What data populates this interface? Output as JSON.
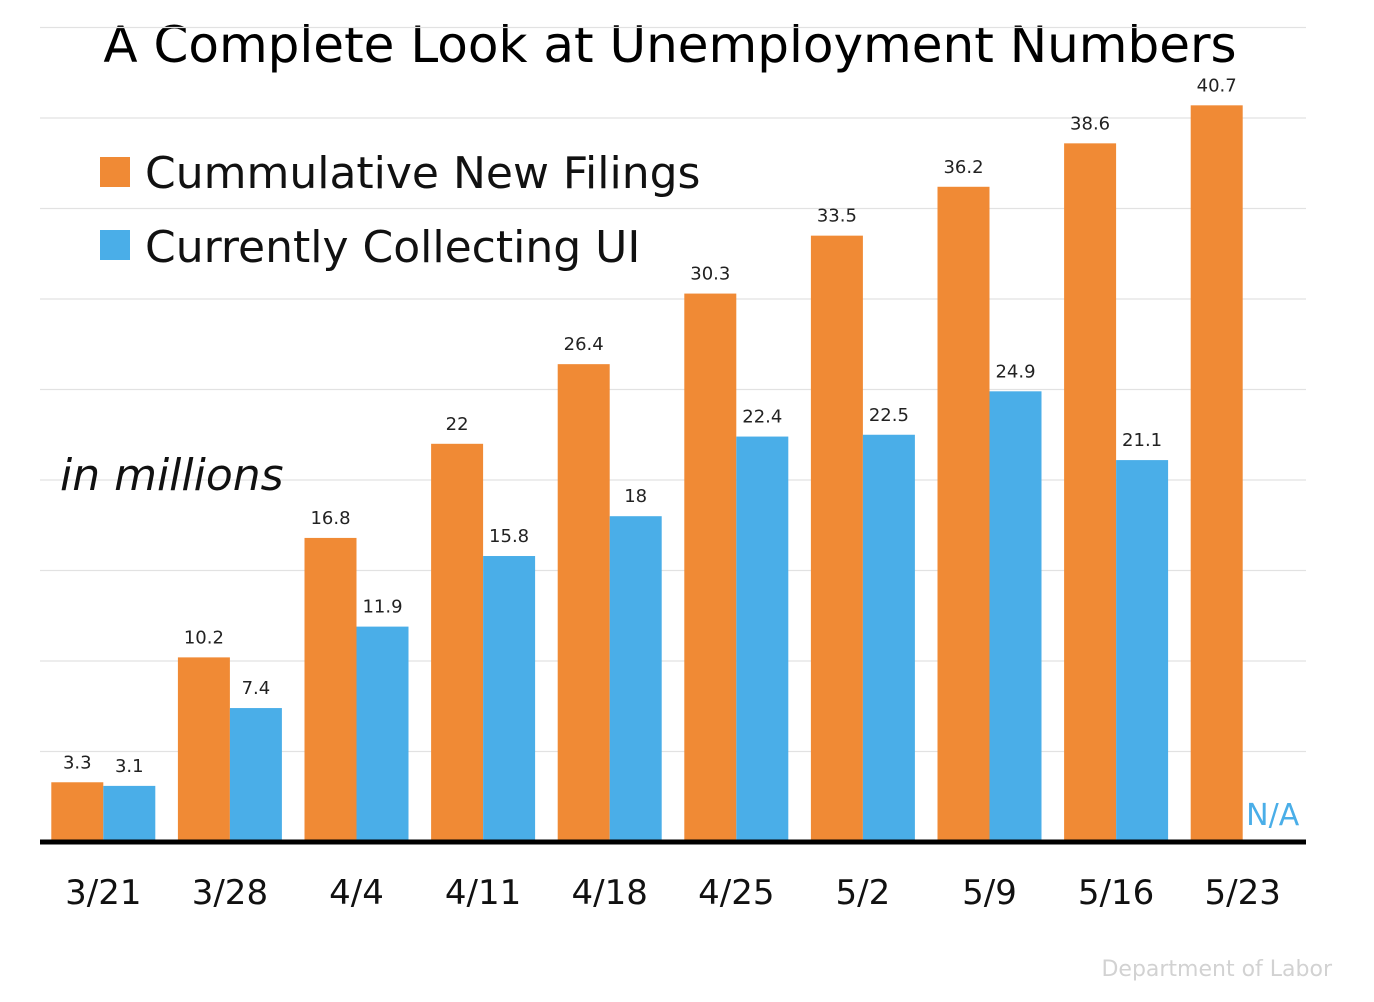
{
  "chart_data": {
    "type": "bar",
    "title": "A Complete Look at Unemployment Numbers",
    "unit_label": "in millions",
    "categories": [
      "3/21",
      "3/28",
      "4/4",
      "4/11",
      "4/18",
      "4/25",
      "5/2",
      "5/9",
      "5/16",
      "5/23"
    ],
    "series": [
      {
        "name": "Cummulative New Filings",
        "color": "#f08a35",
        "values": [
          3.3,
          10.2,
          16.8,
          22,
          26.4,
          30.3,
          33.5,
          36.2,
          38.6,
          40.7
        ],
        "labels": [
          "3.3",
          "10.2",
          "16.8",
          "22",
          "26.4",
          "30.3",
          "33.5",
          "36.2",
          "38.6",
          "40.7"
        ]
      },
      {
        "name": "Currently Collecting UI",
        "color": "#4aaee8",
        "values": [
          3.1,
          7.4,
          11.9,
          15.8,
          18,
          22.4,
          22.5,
          24.9,
          21.1,
          null
        ],
        "labels": [
          "3.1",
          "7.4",
          "11.9",
          "15.8",
          "18",
          "22.4",
          "22.5",
          "24.9",
          "21.1",
          "N/A"
        ]
      }
    ],
    "ylim": [
      0,
      45
    ],
    "grid": true,
    "legend": "top-left",
    "source": "Department of Labor"
  }
}
